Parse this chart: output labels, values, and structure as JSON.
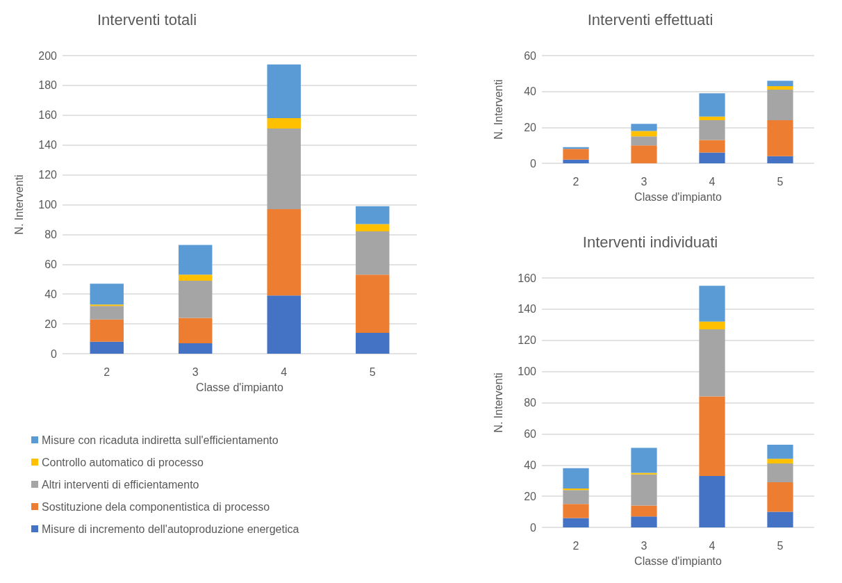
{
  "chart_data": [
    {
      "type": "bar",
      "title": "Interventi totali",
      "xlabel": "Classe d'impianto",
      "ylabel": "N. Interventi",
      "categories": [
        "2",
        "3",
        "4",
        "5"
      ],
      "stacked": true,
      "ylim": [
        0,
        200
      ],
      "yticks": [
        0,
        20,
        40,
        60,
        80,
        100,
        120,
        140,
        160,
        180,
        200
      ],
      "grid": "y",
      "legend": "bottom",
      "series": [
        {
          "name": "Misure di incremento dell'autoproduzione energetica",
          "color": "#4472c4",
          "values": [
            8,
            7,
            39,
            14
          ]
        },
        {
          "name": "Sostituzione dela componentistica di processo",
          "color": "#ed7d31",
          "values": [
            15,
            17,
            58,
            39
          ]
        },
        {
          "name": "Altri interventi di efficientamento",
          "color": "#a5a5a5",
          "values": [
            9,
            25,
            54,
            29
          ]
        },
        {
          "name": "Controllo automatico di processo",
          "color": "#ffc000",
          "values": [
            1,
            4,
            7,
            5
          ]
        },
        {
          "name": "Misure con ricaduta indiretta sull'efficientamento",
          "color": "#5b9bd5",
          "values": [
            14,
            20,
            36,
            12
          ]
        }
      ]
    },
    {
      "type": "bar",
      "title": "Interventi effettuati",
      "xlabel": "Classe d'impianto",
      "ylabel": "N. Interventi",
      "categories": [
        "2",
        "3",
        "4",
        "5"
      ],
      "stacked": true,
      "ylim": [
        0,
        60
      ],
      "yticks": [
        0,
        20,
        40,
        60
      ],
      "grid": "y",
      "series": [
        {
          "color": "#4472c4",
          "values": [
            2,
            0,
            6,
            4
          ]
        },
        {
          "color": "#ed7d31",
          "values": [
            6,
            10,
            7,
            20
          ]
        },
        {
          "color": "#a5a5a5",
          "values": [
            0,
            5,
            11,
            17
          ]
        },
        {
          "color": "#ffc000",
          "values": [
            0,
            3,
            2,
            2
          ]
        },
        {
          "color": "#5b9bd5",
          "values": [
            1,
            4,
            13,
            3
          ]
        }
      ]
    },
    {
      "type": "bar",
      "title": "Interventi individuati",
      "xlabel": "Classe d'impianto",
      "ylabel": "N. Interventi",
      "categories": [
        "2",
        "3",
        "4",
        "5"
      ],
      "stacked": true,
      "ylim": [
        0,
        160
      ],
      "yticks": [
        0,
        20,
        40,
        60,
        80,
        100,
        120,
        140,
        160
      ],
      "grid": "y",
      "series": [
        {
          "color": "#4472c4",
          "values": [
            6,
            7,
            33,
            10
          ]
        },
        {
          "color": "#ed7d31",
          "values": [
            9,
            7,
            51,
            19
          ]
        },
        {
          "color": "#a5a5a5",
          "values": [
            9,
            20,
            43,
            12
          ]
        },
        {
          "color": "#ffc000",
          "values": [
            1,
            1,
            5,
            3
          ]
        },
        {
          "color": "#5b9bd5",
          "values": [
            13,
            16,
            23,
            9
          ]
        }
      ]
    }
  ]
}
